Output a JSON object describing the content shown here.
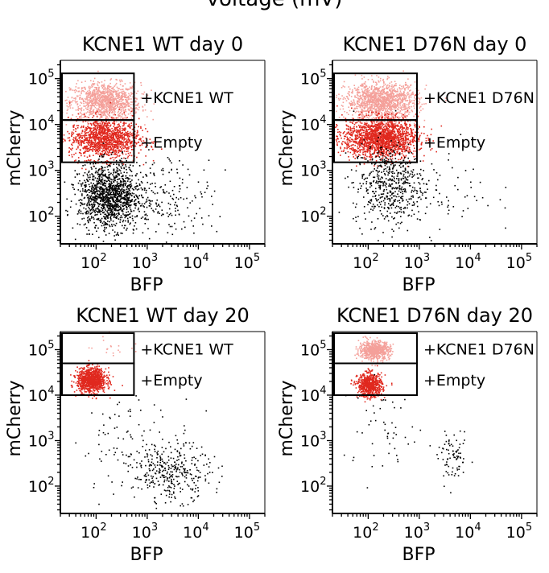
{
  "header": {
    "cut_off_label": "voltage (mV)"
  },
  "style": {
    "gate_high_color": "#f4a09a",
    "gate_low_color": "#e0281e",
    "outside_color": "#000000"
  },
  "chart_data": [
    {
      "type": "scatter",
      "title": "KCNE1 WT day 0",
      "xlabel": "BFP",
      "ylabel": "mCherry",
      "xscale": "log",
      "yscale": "log",
      "xlim": [
        20,
        200000
      ],
      "ylim": [
        25,
        250000
      ],
      "xticks": [
        {
          "value": 100,
          "base": "10",
          "exp": "2"
        },
        {
          "value": 1000,
          "base": "10",
          "exp": "3"
        },
        {
          "value": 10000,
          "base": "10",
          "exp": "4"
        },
        {
          "value": 100000,
          "base": "10",
          "exp": "5"
        }
      ],
      "yticks": [
        {
          "value": 100,
          "base": "10",
          "exp": "2"
        },
        {
          "value": 1000,
          "base": "10",
          "exp": "3"
        },
        {
          "value": 10000,
          "base": "10",
          "exp": "4"
        },
        {
          "value": 100000,
          "base": "10",
          "exp": "5"
        }
      ],
      "gates": [
        {
          "label": "+KCNE1 WT",
          "x": [
            20,
            550
          ],
          "y": [
            12500,
            130000
          ]
        },
        {
          "label": "+Empty",
          "x": [
            20,
            550
          ],
          "y": [
            1500,
            12500
          ]
        }
      ],
      "clusters": [
        {
          "group": "high",
          "n": 1100,
          "x_center": 150,
          "x_spread": 0.34,
          "y_center": 33000,
          "y_spread": 0.2
        },
        {
          "group": "low",
          "n": 1300,
          "x_center": 140,
          "x_spread": 0.34,
          "y_center": 5000,
          "y_spread": 0.22
        },
        {
          "group": "outside",
          "n": 1300,
          "x_center": 180,
          "x_spread": 0.3,
          "y_center": 280,
          "y_spread": 0.35
        },
        {
          "group": "outside",
          "n": 200,
          "x_center": 2500,
          "x_spread": 0.45,
          "y_center": 250,
          "y_spread": 0.45
        }
      ]
    },
    {
      "type": "scatter",
      "title": "KCNE1 D76N day 0",
      "xlabel": "BFP",
      "ylabel": "mCherry",
      "xscale": "log",
      "yscale": "log",
      "xlim": [
        20,
        200000
      ],
      "ylim": [
        25,
        250000
      ],
      "xticks": [
        {
          "value": 100,
          "base": "10",
          "exp": "2"
        },
        {
          "value": 1000,
          "base": "10",
          "exp": "3"
        },
        {
          "value": 10000,
          "base": "10",
          "exp": "4"
        },
        {
          "value": 100000,
          "base": "10",
          "exp": "5"
        }
      ],
      "yticks": [
        {
          "value": 100,
          "base": "10",
          "exp": "2"
        },
        {
          "value": 1000,
          "base": "10",
          "exp": "3"
        },
        {
          "value": 10000,
          "base": "10",
          "exp": "4"
        },
        {
          "value": 100000,
          "base": "10",
          "exp": "5"
        }
      ],
      "gates": [
        {
          "label": "+KCNE1 D76N",
          "x": [
            20,
            900
          ],
          "y": [
            12500,
            130000
          ]
        },
        {
          "label": "+Empty",
          "x": [
            20,
            900
          ],
          "y": [
            1500,
            12500
          ]
        }
      ],
      "clusters": [
        {
          "group": "high",
          "n": 1300,
          "x_center": 180,
          "x_spread": 0.35,
          "y_center": 33000,
          "y_spread": 0.2
        },
        {
          "group": "low",
          "n": 1800,
          "x_center": 170,
          "x_spread": 0.36,
          "y_center": 5200,
          "y_spread": 0.22
        },
        {
          "group": "outside",
          "n": 550,
          "x_center": 250,
          "x_spread": 0.35,
          "y_center": 500,
          "y_spread": 0.45
        },
        {
          "group": "outside",
          "n": 60,
          "x_center": 3000,
          "x_spread": 0.5,
          "y_center": 400,
          "y_spread": 0.5
        }
      ]
    },
    {
      "type": "scatter",
      "title": "KCNE1 WT day 20",
      "xlabel": "BFP",
      "ylabel": "mCherry",
      "xscale": "log",
      "yscale": "log",
      "xlim": [
        20,
        200000
      ],
      "ylim": [
        25,
        250000
      ],
      "xticks": [
        {
          "value": 100,
          "base": "10",
          "exp": "2"
        },
        {
          "value": 1000,
          "base": "10",
          "exp": "3"
        },
        {
          "value": 10000,
          "base": "10",
          "exp": "4"
        },
        {
          "value": 100000,
          "base": "10",
          "exp": "5"
        }
      ],
      "yticks": [
        {
          "value": 100,
          "base": "10",
          "exp": "2"
        },
        {
          "value": 1000,
          "base": "10",
          "exp": "3"
        },
        {
          "value": 10000,
          "base": "10",
          "exp": "4"
        },
        {
          "value": 100000,
          "base": "10",
          "exp": "5"
        }
      ],
      "gates": [
        {
          "label": "+KCNE1 WT",
          "x": [
            20,
            550
          ],
          "y": [
            50000,
            300000
          ]
        },
        {
          "label": "+Empty",
          "x": [
            20,
            550
          ],
          "y": [
            10000,
            50000
          ]
        }
      ],
      "clusters": [
        {
          "group": "high",
          "n": 20,
          "x_center": 200,
          "x_spread": 0.3,
          "y_center": 120000,
          "y_spread": 0.15
        },
        {
          "group": "low",
          "n": 1000,
          "x_center": 80,
          "x_spread": 0.14,
          "y_center": 22000,
          "y_spread": 0.13
        },
        {
          "group": "outside",
          "n": 320,
          "x_center": 3000,
          "x_spread": 0.38,
          "y_center": 200,
          "y_spread": 0.3
        },
        {
          "group": "outside",
          "n": 110,
          "x_center": 600,
          "x_spread": 0.55,
          "y_center": 800,
          "y_spread": 0.55
        }
      ]
    },
    {
      "type": "scatter",
      "title": "KCNE1 D76N day 20",
      "xlabel": "BFP",
      "ylabel": "mCherry",
      "xscale": "log",
      "yscale": "log",
      "xlim": [
        20,
        200000
      ],
      "ylim": [
        25,
        250000
      ],
      "xticks": [
        {
          "value": 100,
          "base": "10",
          "exp": "2"
        },
        {
          "value": 1000,
          "base": "10",
          "exp": "3"
        },
        {
          "value": 10000,
          "base": "10",
          "exp": "4"
        },
        {
          "value": 100000,
          "base": "10",
          "exp": "5"
        }
      ],
      "yticks": [
        {
          "value": 100,
          "base": "10",
          "exp": "2"
        },
        {
          "value": 1000,
          "base": "10",
          "exp": "3"
        },
        {
          "value": 10000,
          "base": "10",
          "exp": "4"
        },
        {
          "value": 100000,
          "base": "10",
          "exp": "5"
        }
      ],
      "gates": [
        {
          "label": "+KCNE1 D76N",
          "x": [
            20,
            900
          ],
          "y": [
            50000,
            300000
          ]
        },
        {
          "label": "+Empty",
          "x": [
            20,
            900
          ],
          "y": [
            10000,
            50000
          ]
        }
      ],
      "clusters": [
        {
          "group": "high",
          "n": 650,
          "x_center": 130,
          "x_spread": 0.15,
          "y_center": 100000,
          "y_spread": 0.1
        },
        {
          "group": "low",
          "n": 650,
          "x_center": 105,
          "x_spread": 0.12,
          "y_center": 17000,
          "y_spread": 0.13
        },
        {
          "group": "outside",
          "n": 80,
          "x_center": 4500,
          "x_spread": 0.15,
          "y_center": 400,
          "y_spread": 0.25
        },
        {
          "group": "outside",
          "n": 50,
          "x_center": 200,
          "x_spread": 0.4,
          "y_center": 1500,
          "y_spread": 0.5
        }
      ]
    }
  ]
}
